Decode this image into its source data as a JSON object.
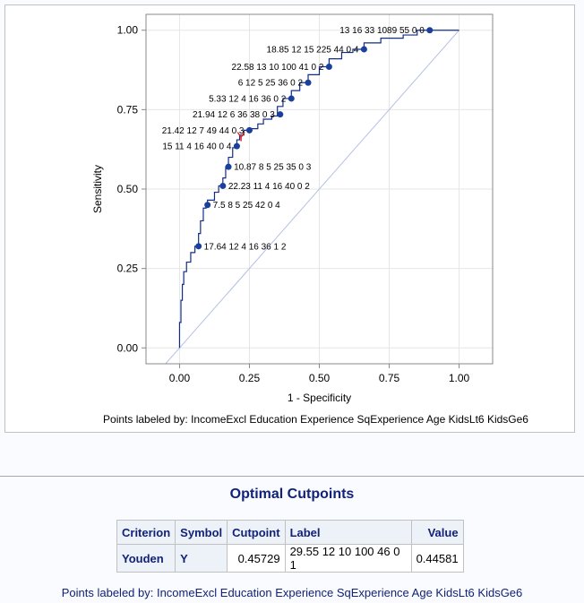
{
  "chart_data": {
    "type": "line",
    "xlabel": "1 - Specificity",
    "ylabel": "Sensitivity",
    "xlim": [
      -0.12,
      1.12
    ],
    "ylim": [
      -0.05,
      1.05
    ],
    "xticks": [
      "0.00",
      "0.25",
      "0.50",
      "0.75",
      "1.00"
    ],
    "yticks": [
      "0.00",
      "0.25",
      "0.50",
      "0.75",
      "1.00"
    ],
    "grid": true,
    "footnote": "Points labeled by: IncomeExcl Education Experience SqExperience Age KidsLt6 KidsGe6",
    "reference_line": [
      [
        -0.05,
        -0.05
      ],
      [
        1.0,
        1.0
      ]
    ],
    "roc_curve": [
      [
        0.0,
        0.0
      ],
      [
        0.005,
        0.08
      ],
      [
        0.01,
        0.15
      ],
      [
        0.015,
        0.2
      ],
      [
        0.025,
        0.24
      ],
      [
        0.04,
        0.27
      ],
      [
        0.055,
        0.3
      ],
      [
        0.068,
        0.32
      ],
      [
        0.075,
        0.36
      ],
      [
        0.085,
        0.4
      ],
      [
        0.095,
        0.44
      ],
      [
        0.1,
        0.45
      ],
      [
        0.125,
        0.465
      ],
      [
        0.14,
        0.49
      ],
      [
        0.155,
        0.51
      ],
      [
        0.165,
        0.535
      ],
      [
        0.175,
        0.57
      ],
      [
        0.19,
        0.6
      ],
      [
        0.205,
        0.63
      ],
      [
        0.215,
        0.655
      ],
      [
        0.23,
        0.67
      ],
      [
        0.25,
        0.685
      ],
      [
        0.28,
        0.69
      ],
      [
        0.3,
        0.705
      ],
      [
        0.33,
        0.72
      ],
      [
        0.35,
        0.73
      ],
      [
        0.37,
        0.76
      ],
      [
        0.4,
        0.785
      ],
      [
        0.43,
        0.81
      ],
      [
        0.46,
        0.835
      ],
      [
        0.5,
        0.86
      ],
      [
        0.535,
        0.885
      ],
      [
        0.58,
        0.91
      ],
      [
        0.62,
        0.93
      ],
      [
        0.66,
        0.94
      ],
      [
        0.72,
        0.96
      ],
      [
        0.8,
        0.975
      ],
      [
        0.85,
        0.985
      ],
      [
        0.895,
        1.0
      ],
      [
        1.0,
        1.0
      ]
    ],
    "points": [
      {
        "x": 0.895,
        "y": 1.0,
        "label": "13 16 33 1089 55 0 0"
      },
      {
        "x": 0.66,
        "y": 0.94,
        "label": "18.85 12 15 225 44 0 4"
      },
      {
        "x": 0.535,
        "y": 0.885,
        "label": "22.58 13 10 100 41 0 2"
      },
      {
        "x": 0.46,
        "y": 0.835,
        "label": "6 12 5 25 36 0 2"
      },
      {
        "x": 0.4,
        "y": 0.785,
        "label": "5.33 12 4 16 36 0 2"
      },
      {
        "x": 0.36,
        "y": 0.735,
        "label": "21.94 12 6 36 38 0 3"
      },
      {
        "x": 0.25,
        "y": 0.685,
        "label": "21.42 12 7 49 44 0 3"
      },
      {
        "x": 0.205,
        "y": 0.635,
        "label": "15 11 4 16 40 0 4"
      },
      {
        "x": 0.175,
        "y": 0.57,
        "label": "10.87 8 5 25 35 0 3"
      },
      {
        "x": 0.155,
        "y": 0.51,
        "label": "22.23 11 4 16 40 0 2"
      },
      {
        "x": 0.1,
        "y": 0.45,
        "label": "7.5 8 5 25 42 0 4"
      },
      {
        "x": 0.068,
        "y": 0.32,
        "label": "17.64 12 4 16 36 1 2"
      }
    ],
    "optimal_marker": {
      "x": 0.22,
      "y": 0.668,
      "symbol": "Y",
      "color": "#e8141c"
    },
    "colors": {
      "curve": "#112d8a",
      "points": "#1a3f9c",
      "reference": "#b4c0e6",
      "grid": "#e6e6e6"
    }
  },
  "optimal_cutpoints": {
    "title": "Optimal Cutpoints",
    "headers": [
      "Criterion",
      "Symbol",
      "Cutpoint",
      "Label",
      "Value"
    ],
    "rows": [
      {
        "criterion": "Youden",
        "symbol": "Y",
        "cutpoint": "0.45729",
        "label": "29.55 12 10 100 46 0 1",
        "value": "0.44581"
      }
    ],
    "footnote": "Points labeled by: IncomeExcl Education Experience SqExperience Age KidsLt6 KidsGe6"
  }
}
